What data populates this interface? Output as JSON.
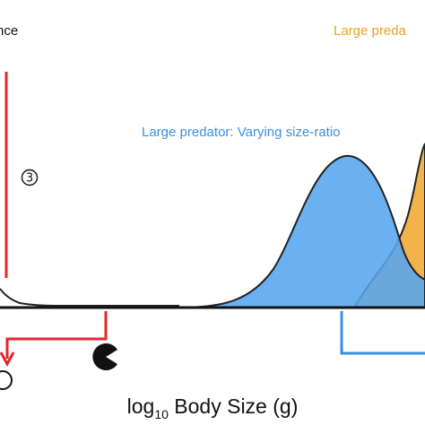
{
  "labels": {
    "abundance_fragment": "nce",
    "large_predator_top": "Large preda",
    "large_predator_varying": "Large predator: Varying size-ratio",
    "circled_number": "③",
    "xaxis_prefix": "log",
    "xaxis_subscript": "10",
    "xaxis_suffix": " Body Size (g)"
  },
  "colors": {
    "blue_fill": "#56a5ee",
    "blue_label": "#3a8fe0",
    "orange_fill": "#f2ab3c",
    "orange_label": "#e8a020",
    "red": "#e8252a",
    "axis": "#111111"
  },
  "icons": [
    "pacman-icon",
    "circled-three-icon",
    "red-arrow-icon"
  ]
}
